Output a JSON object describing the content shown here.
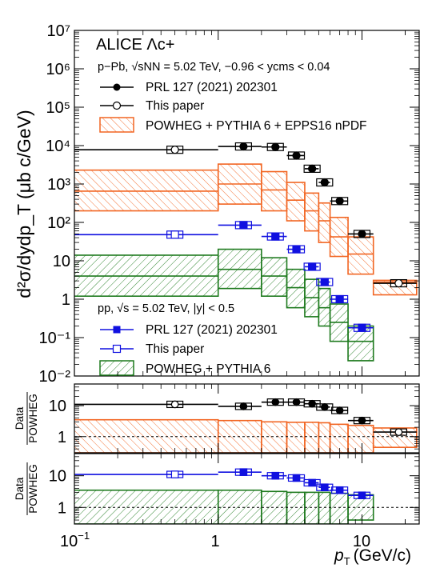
{
  "chart_data": {
    "type": "scatter",
    "x_label": "p",
    "x_label_sub": "T",
    "x_label_unit": "(GeV/c)",
    "x_ticks": [
      "10",
      "1",
      "10"
    ],
    "x_tick_exponent": "−1",
    "x_range": [
      0.1,
      25
    ],
    "x_scale": "log",
    "panels": [
      {
        "name": "cross-section",
        "y_label": "d²σ/dydp_T (μb c/GeV)",
        "y_scale": "log",
        "y_range": [
          0.01,
          10000000
        ],
        "y_tick_labels": [
          "10⁷",
          "10⁶",
          "10⁵",
          "10⁴",
          "10³",
          "10²",
          "10",
          "1",
          "10⁻¹",
          "10⁻²"
        ],
        "title": "ALICE Λc+",
        "annotations": {
          "ppb_system": "p−Pb, √sNN = 5.02 TeV, −0.96 < ycms < 0.04",
          "pp_system": "pp, √s = 5.02 TeV, |y| < 0.5"
        },
        "legend": {
          "ppb_prl": "PRL 127 (2021) 202301",
          "ppb_this": "This paper",
          "ppb_model": "POWHEG + PYTHIA 6 + EPPS16 nPDF",
          "pp_prl": "PRL 127 (2021) 202301",
          "pp_this": "This paper",
          "pp_model": "POWHEG + PYTHIA 6"
        },
        "series": [
          {
            "system": "pPb",
            "source": "PRL",
            "points": [
              {
                "x": 1.5,
                "xlo": 1,
                "xhi": 2,
                "y": 9500
              },
              {
                "x": 2.5,
                "xlo": 2,
                "xhi": 3,
                "y": 9200
              },
              {
                "x": 3.5,
                "xlo": 3,
                "xhi": 4,
                "y": 5500
              },
              {
                "x": 4.5,
                "xlo": 4,
                "xhi": 5,
                "y": 2500
              },
              {
                "x": 5.5,
                "xlo": 5,
                "xhi": 6,
                "y": 1100
              },
              {
                "x": 7,
                "xlo": 6,
                "xhi": 8,
                "y": 360
              },
              {
                "x": 10,
                "xlo": 8,
                "xhi": 12,
                "y": 50
              }
            ]
          },
          {
            "system": "pPb",
            "source": "This paper",
            "points": [
              {
                "x": 0.5,
                "xlo": 0,
                "xhi": 1,
                "y": 7800
              },
              {
                "x": 18,
                "xlo": 12,
                "xhi": 24,
                "y": 2.6
              }
            ]
          },
          {
            "system": "pPb",
            "source": "POWHEG + PYTHIA 6 + EPPS16 nPDF",
            "bins": [
              {
                "xlo": 0,
                "xhi": 1,
                "lo": 200,
                "mid": 650,
                "hi": 2300
              },
              {
                "xlo": 1,
                "xhi": 2,
                "lo": 300,
                "mid": 1000,
                "hi": 3300
              },
              {
                "xlo": 2,
                "xhi": 3,
                "lo": 200,
                "mid": 700,
                "hi": 2100
              },
              {
                "xlo": 3,
                "xhi": 4,
                "lo": 110,
                "mid": 380,
                "hi": 1100
              },
              {
                "xlo": 4,
                "xhi": 5,
                "lo": 60,
                "mid": 200,
                "hi": 580
              },
              {
                "xlo": 5,
                "xhi": 6,
                "lo": 30,
                "mid": 110,
                "hi": 320
              },
              {
                "xlo": 6,
                "xhi": 8,
                "lo": 13,
                "mid": 42,
                "hi": 135
              },
              {
                "xlo": 8,
                "xhi": 12,
                "lo": 4.5,
                "mid": 15,
                "hi": 42
              },
              {
                "xlo": 12,
                "xhi": 24,
                "lo": 1.3,
                "mid": 2.8,
                "hi": 3.1
              }
            ]
          },
          {
            "system": "pp",
            "source": "PRL",
            "points": [
              {
                "x": 1.5,
                "xlo": 1,
                "xhi": 2,
                "y": 85
              },
              {
                "x": 2.5,
                "xlo": 2,
                "xhi": 3,
                "y": 43
              },
              {
                "x": 3.5,
                "xlo": 3,
                "xhi": 4,
                "y": 20
              },
              {
                "x": 4.5,
                "xlo": 4,
                "xhi": 5,
                "y": 7
              },
              {
                "x": 5.5,
                "xlo": 5,
                "xhi": 6,
                "y": 2.8
              },
              {
                "x": 7,
                "xlo": 6,
                "xhi": 8,
                "y": 1
              },
              {
                "x": 10,
                "xlo": 8,
                "xhi": 12,
                "y": 0.18
              }
            ]
          },
          {
            "system": "pp",
            "source": "This paper",
            "points": [
              {
                "x": 0.5,
                "xlo": 0,
                "xhi": 1,
                "y": 48
              }
            ]
          },
          {
            "system": "pp",
            "source": "POWHEG + PYTHIA 6",
            "bins": [
              {
                "xlo": 0,
                "xhi": 1,
                "lo": 1.2,
                "mid": 4,
                "hi": 14
              },
              {
                "xlo": 1,
                "xhi": 2,
                "lo": 1.9,
                "mid": 6,
                "hi": 20
              },
              {
                "xlo": 2,
                "xhi": 3,
                "lo": 1.2,
                "mid": 4,
                "hi": 12
              },
              {
                "xlo": 3,
                "xhi": 4,
                "lo": 0.6,
                "mid": 2,
                "hi": 6
              },
              {
                "xlo": 4,
                "xhi": 5,
                "lo": 0.35,
                "mid": 1.1,
                "hi": 3.3
              },
              {
                "xlo": 5,
                "xhi": 6,
                "lo": 0.2,
                "mid": 0.6,
                "hi": 1.9
              },
              {
                "xlo": 6,
                "xhi": 8,
                "lo": 0.08,
                "mid": 0.25,
                "hi": 0.75
              },
              {
                "xlo": 8,
                "xhi": 12,
                "lo": 0.025,
                "mid": 0.08,
                "hi": 0.2
              }
            ]
          }
        ]
      },
      {
        "name": "ratio-ppb",
        "y_label_num": "Data",
        "y_label_den": "POWHEG",
        "y_scale": "log",
        "y_range": [
          0.3,
          50
        ],
        "y_tick_labels": [
          "10",
          "1"
        ],
        "reference_line": 1,
        "data": [
          {
            "xlo": 0,
            "xhi": 1,
            "y": 11
          },
          {
            "xlo": 1,
            "xhi": 2,
            "y": 9.5
          },
          {
            "xlo": 2,
            "xhi": 3,
            "y": 13
          },
          {
            "xlo": 3,
            "xhi": 4,
            "y": 13
          },
          {
            "xlo": 4,
            "xhi": 5,
            "y": 11.5
          },
          {
            "xlo": 5,
            "xhi": 6,
            "y": 9
          },
          {
            "xlo": 6,
            "xhi": 8,
            "y": 7
          },
          {
            "xlo": 8,
            "xhi": 12,
            "y": 3.3
          },
          {
            "xlo": 12,
            "xhi": 24,
            "y": 1.4
          }
        ],
        "band": [
          {
            "xlo": 0,
            "xhi": 1,
            "lo": 0.3,
            "hi": 3.5
          },
          {
            "xlo": 1,
            "xhi": 2,
            "lo": 0.3,
            "hi": 3.3
          },
          {
            "xlo": 2,
            "xhi": 3,
            "lo": 0.3,
            "hi": 3
          },
          {
            "xlo": 3,
            "xhi": 4,
            "lo": 0.3,
            "hi": 2.9
          },
          {
            "xlo": 4,
            "xhi": 5,
            "lo": 0.3,
            "hi": 2.9
          },
          {
            "xlo": 5,
            "xhi": 6,
            "lo": 0.3,
            "hi": 2.8
          },
          {
            "xlo": 6,
            "xhi": 8,
            "lo": 0.3,
            "hi": 2.5
          },
          {
            "xlo": 8,
            "xhi": 12,
            "lo": 0.3,
            "hi": 2.3
          },
          {
            "xlo": 12,
            "xhi": 24,
            "lo": 0.45,
            "hi": 1.9
          }
        ]
      },
      {
        "name": "ratio-pp",
        "y_label_num": "Data",
        "y_label_den": "POWHEG",
        "y_scale": "log",
        "y_range": [
          0.3,
          50
        ],
        "y_tick_labels": [
          "10",
          "1"
        ],
        "reference_line": 1,
        "data": [
          {
            "xlo": 0,
            "xhi": 1,
            "y": 11
          },
          {
            "xlo": 1,
            "xhi": 2,
            "y": 13
          },
          {
            "xlo": 2,
            "xhi": 3,
            "y": 10
          },
          {
            "xlo": 3,
            "xhi": 4,
            "y": 8.5
          },
          {
            "xlo": 4,
            "xhi": 5,
            "y": 6
          },
          {
            "xlo": 5,
            "xhi": 6,
            "y": 4.3
          },
          {
            "xlo": 6,
            "xhi": 8,
            "y": 3.5
          },
          {
            "xlo": 8,
            "xhi": 12,
            "y": 2.4
          }
        ],
        "band": [
          {
            "xlo": 0,
            "xhi": 1,
            "lo": 0.3,
            "hi": 3.5
          },
          {
            "xlo": 1,
            "xhi": 2,
            "lo": 0.3,
            "hi": 3.5
          },
          {
            "xlo": 2,
            "xhi": 3,
            "lo": 0.3,
            "hi": 3.2
          },
          {
            "xlo": 3,
            "xhi": 4,
            "lo": 0.3,
            "hi": 3
          },
          {
            "xlo": 4,
            "xhi": 5,
            "lo": 0.3,
            "hi": 3
          },
          {
            "xlo": 5,
            "xhi": 6,
            "lo": 0.3,
            "hi": 3
          },
          {
            "xlo": 6,
            "xhi": 8,
            "lo": 0.3,
            "hi": 2.8
          },
          {
            "xlo": 8,
            "xhi": 12,
            "lo": 0.4,
            "hi": 2.5
          }
        ]
      }
    ],
    "colors": {
      "ppb": "#000000",
      "ppb_model": "#f26522",
      "pp": "#1010e0",
      "pp_model": "#1e7a1e"
    }
  }
}
